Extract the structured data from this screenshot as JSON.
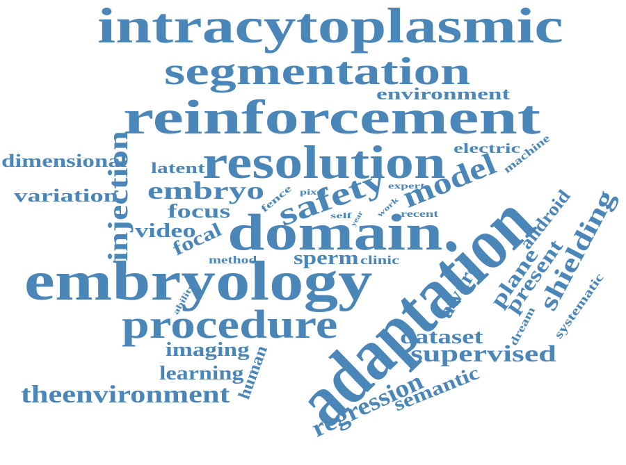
{
  "color": "#4a86b8",
  "words": [
    "intracytoplasmic",
    "segmentation",
    "environment",
    "reinforcement",
    "electric",
    "machine",
    "dimensional",
    "latent",
    "resolution",
    "variation",
    "embryo",
    "injection",
    "safety",
    "model",
    "fence",
    "pixel",
    "expert",
    "focus",
    "work",
    "self",
    "year",
    "recent",
    "video",
    "domain",
    "focal",
    "android",
    "method",
    "sperm",
    "clinic",
    "embryology",
    "ability",
    "adaptation",
    "plane",
    "aware",
    "present",
    "shielding",
    "systematic",
    "procedure",
    "dream",
    "dataset",
    "imaging",
    "supervised",
    "learning",
    "human",
    "theenvironment",
    "regression",
    "semantic"
  ]
}
